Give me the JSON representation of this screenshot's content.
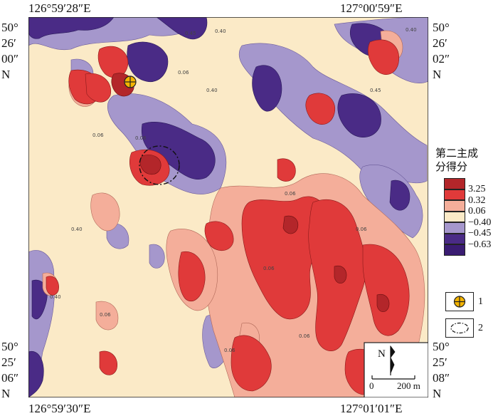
{
  "coords": {
    "top_left": "126°59′28″E",
    "top_right": "127°00′59″E",
    "bottom_left": "126°59′30″E",
    "bottom_right": "127°01′01″E",
    "lat_top_left": [
      "50°",
      "26′",
      "00″",
      "N"
    ],
    "lat_top_right": [
      "50°",
      "26′",
      "02″",
      "N"
    ],
    "lat_bottom_left": [
      "50°",
      "25′",
      "06″",
      "N"
    ],
    "lat_bottom_right": [
      "50°",
      "25′",
      "08″",
      "N"
    ]
  },
  "legend": {
    "title_line1": "第二主成",
    "title_line2": "分得分",
    "items": [
      {
        "label": "3.25",
        "color": "#b3262a"
      },
      {
        "label": "0.32",
        "color": "#e03a3a"
      },
      {
        "label": "0.06",
        "color": "#f4ae9a"
      },
      {
        "label": "−0.40",
        "color": "#fbeac7"
      },
      {
        "label": "−0.45",
        "color": "#a597cc"
      },
      {
        "label": "−0.63",
        "color": "#4a2b86"
      },
      {
        "label": "",
        "color": "#3a1c72"
      }
    ],
    "symbol1_label": "1",
    "symbol2_label": "2"
  },
  "scale_bar": {
    "north": "N",
    "zero": "0",
    "distance": "200 m"
  },
  "contour_labels": [
    "0.45",
    "0.40",
    "0.06",
    "0.06",
    "0.06",
    "0.40",
    "0.06",
    "0.45",
    "0.40",
    "0.06",
    "0.06",
    "0.40",
    "0.06",
    "0.06",
    "0.06",
    "0.40"
  ]
}
